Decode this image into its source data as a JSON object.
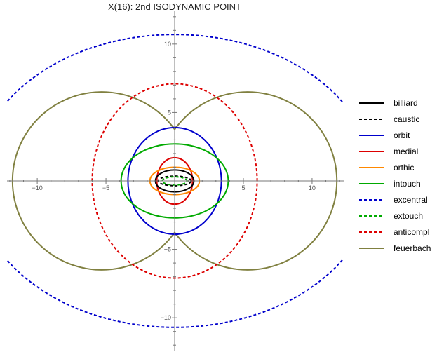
{
  "chart_data": {
    "type": "line",
    "title": "X(16): 2nd ISODYNAMIC POINT",
    "xlabel": "",
    "ylabel": "",
    "xlim": [
      -12.2,
      12.3
    ],
    "ylim": [
      -12.4,
      12.4
    ],
    "x_ticks": [
      -10,
      -5,
      5,
      10
    ],
    "y_ticks": [
      10,
      5,
      -5,
      -10
    ],
    "x_tick_labels": [
      "−10",
      "−5",
      "5",
      "10"
    ],
    "y_tick_labels": [
      "10",
      "5",
      "−5",
      "−10"
    ],
    "grid": false,
    "legend_position": "right",
    "series": [
      {
        "name": "billiard",
        "color": "#000000",
        "dashed": false,
        "shape": "ellipse",
        "a": 1.4,
        "b": 0.8
      },
      {
        "name": "caustic",
        "color": "#000000",
        "dashed": true,
        "shape": "ellipse",
        "a": 1.2,
        "b": 0.35
      },
      {
        "name": "orbit",
        "color": "#0000cc",
        "dashed": false,
        "shape": "ellipse",
        "a": 3.4,
        "b": 3.9
      },
      {
        "name": "medial",
        "color": "#dd0000",
        "dashed": false,
        "shape": "ellipse",
        "a": 1.3,
        "b": 1.7
      },
      {
        "name": "orthic",
        "color": "#ff8800",
        "dashed": false,
        "shape": "ellipse",
        "a": 1.8,
        "b": 1.0
      },
      {
        "name": "intouch",
        "color": "#00aa00",
        "dashed": false,
        "shape": "ellipse",
        "a": 3.9,
        "b": 2.7
      },
      {
        "name": "excentral",
        "color": "#0000cc",
        "dashed": true,
        "shape": "arcs",
        "a": 14.5,
        "b": 10.7
      },
      {
        "name": "extouch",
        "color": "#00aa00",
        "dashed": true,
        "shape": "ellipse",
        "a": 0.9,
        "b": 0.3
      },
      {
        "name": "anticompl",
        "color": "#dd0000",
        "dashed": true,
        "shape": "ellipse",
        "a": 6.0,
        "b": 7.1
      },
      {
        "name": "feuerbach",
        "color": "#808040",
        "dashed": false,
        "shape": "two-lobe",
        "lobe_center_x": 5.3,
        "lobe_radius": 6.5
      }
    ]
  }
}
